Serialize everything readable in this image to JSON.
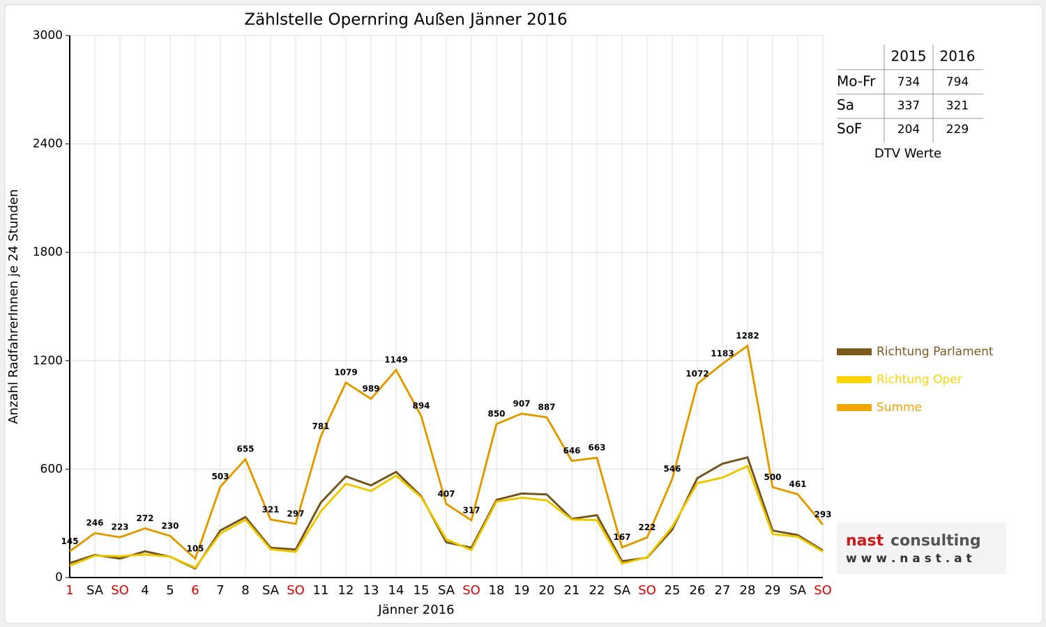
{
  "chart_data": {
    "type": "line",
    "title": "Zählstelle Opernring Außen Jänner 2016",
    "x_label": "Jänner 2016",
    "y_label": "Anzahl RadfahrerInnen je 24 Stunden",
    "categories": [
      "1",
      "SA",
      "SO",
      "4",
      "5",
      "6",
      "7",
      "8",
      "SA",
      "SO",
      "11",
      "12",
      "13",
      "14",
      "15",
      "SA",
      "SO",
      "18",
      "19",
      "20",
      "21",
      "22",
      "SA",
      "SO",
      "25",
      "26",
      "27",
      "28",
      "29",
      "SA",
      "SO"
    ],
    "category_colors": [
      "#e00000",
      "#000000",
      "#e00000",
      "#000000",
      "#000000",
      "#e00000",
      "#000000",
      "#000000",
      "#000000",
      "#e00000",
      "#000000",
      "#000000",
      "#000000",
      "#000000",
      "#000000",
      "#000000",
      "#e00000",
      "#000000",
      "#000000",
      "#000000",
      "#000000",
      "#000000",
      "#000000",
      "#e00000",
      "#000000",
      "#000000",
      "#000000",
      "#000000",
      "#000000",
      "#000000",
      "#e00000"
    ],
    "series": [
      {
        "name": "Richtung Parlament",
        "color": "#7b5a1e",
        "values": [
          80,
          125,
          105,
          145,
          115,
          50,
          260,
          335,
          165,
          155,
          415,
          560,
          510,
          585,
          450,
          195,
          165,
          430,
          465,
          460,
          325,
          345,
          90,
          110,
          265,
          550,
          630,
          665,
          260,
          235,
          150
        ]
      },
      {
        "name": "Richtung Oper",
        "color": "#ffd400",
        "values": [
          65,
          121,
          118,
          127,
          115,
          55,
          243,
          320,
          156,
          142,
          366,
          519,
          479,
          564,
          444,
          212,
          152,
          420,
          442,
          427,
          321,
          318,
          77,
          112,
          281,
          522,
          553,
          617,
          240,
          226,
          143
        ]
      },
      {
        "name": "Summe",
        "color": "#f0a500",
        "values": [
          145,
          246,
          223,
          272,
          230,
          105,
          503,
          655,
          321,
          297,
          781,
          1079,
          989,
          1149,
          894,
          407,
          317,
          850,
          907,
          887,
          646,
          663,
          167,
          222,
          546,
          1072,
          1183,
          1282,
          500,
          461,
          293
        ],
        "data_labels": true
      }
    ],
    "ylim": [
      0,
      3000
    ],
    "yticks": [
      0,
      600,
      1200,
      1800,
      2400,
      3000
    ],
    "grid": true
  },
  "dtv_table": {
    "columns": [
      "2015",
      "2016"
    ],
    "rows": [
      {
        "label": "Mo-Fr",
        "values": [
          "734",
          "794"
        ]
      },
      {
        "label": "Sa",
        "values": [
          "337",
          "321"
        ]
      },
      {
        "label": "SoF",
        "values": [
          "204",
          "229"
        ]
      }
    ],
    "caption": "DTV Werte"
  },
  "logo": {
    "brand": "nast",
    "suffix": "consulting",
    "url": "w w w . n a s t . a t"
  }
}
